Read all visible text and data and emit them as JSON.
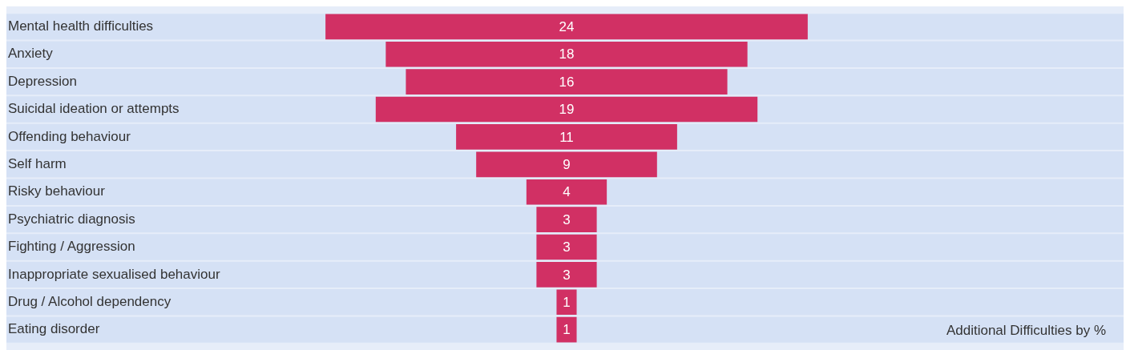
{
  "chart_data": {
    "type": "other",
    "categories": [
      "Mental health difficulties",
      "Anxiety",
      "Depression",
      "Suicidal ideation or attempts",
      "Offending behaviour",
      "Self harm",
      "Risky behaviour",
      "Psychiatric diagnosis",
      "Fighting / Aggression",
      "Inappropriate sexualised behaviour",
      "Drug / Alcohol dependency",
      "Eating disorder"
    ],
    "values": [
      24,
      18,
      16,
      19,
      11,
      9,
      4,
      3,
      3,
      3,
      1,
      1
    ],
    "color": "#d13064",
    "data_labels": true,
    "annotations": [
      "Additional Difficulties by %"
    ]
  }
}
